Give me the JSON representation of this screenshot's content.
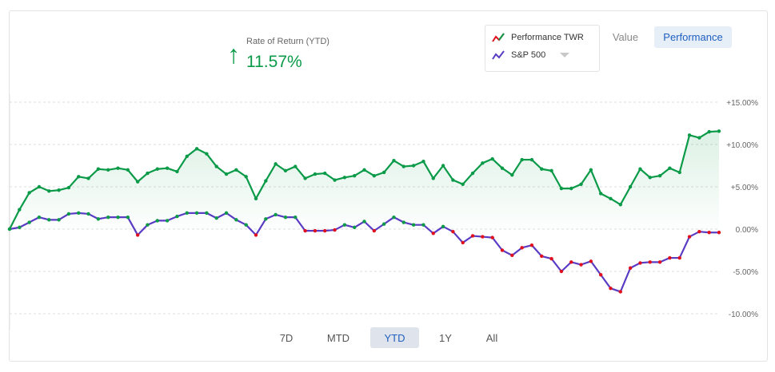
{
  "summary": {
    "label": "Rate of Return (YTD)",
    "value": "11.57%",
    "arrow_icon": "arrow-up-icon",
    "color": "#0a9a48"
  },
  "legend": {
    "items": [
      {
        "label": "Performance TWR",
        "icon": "trend-red-green-icon"
      },
      {
        "label": "S&P 500",
        "icon": "trend-purple-icon"
      }
    ]
  },
  "view_toggle": {
    "value": "Value",
    "performance": "Performance",
    "selected": "Performance"
  },
  "periods": {
    "items": [
      "7D",
      "MTD",
      "YTD",
      "1Y",
      "All"
    ],
    "selected": "YTD"
  },
  "chart_data": {
    "type": "line",
    "ylim": [
      -10,
      15
    ],
    "yticks": [
      "+15.00%",
      "+10.00%",
      "+5.00%",
      "0.00%",
      "-5.00%",
      "-10.00%"
    ],
    "ytick_values": [
      15,
      10,
      5,
      0,
      -5,
      -10
    ],
    "grid": true,
    "legend_placement": "top-right",
    "series": [
      {
        "name": "Performance TWR",
        "color": "#0a9a48",
        "fill": true,
        "values": [
          0.0,
          2.3,
          4.3,
          5.0,
          4.5,
          4.6,
          4.9,
          6.2,
          6.0,
          7.1,
          7.0,
          7.2,
          7.0,
          5.6,
          6.6,
          7.1,
          7.2,
          6.8,
          8.6,
          9.5,
          8.9,
          7.4,
          6.5,
          7.0,
          6.2,
          3.6,
          5.7,
          7.7,
          6.9,
          7.4,
          6.0,
          6.5,
          6.6,
          5.8,
          6.1,
          6.3,
          7.0,
          6.3,
          6.7,
          8.1,
          7.4,
          7.5,
          8.0,
          6.0,
          7.5,
          5.8,
          5.3,
          6.6,
          7.8,
          8.3,
          7.2,
          6.4,
          8.2,
          8.2,
          7.1,
          6.9,
          4.8,
          4.8,
          5.3,
          7.0,
          4.2,
          3.6,
          2.9,
          5.0,
          7.1,
          6.1,
          6.3,
          7.2,
          6.7,
          11.1,
          10.8,
          11.5,
          11.57
        ]
      },
      {
        "name": "S&P 500",
        "color": "#5a3cc4",
        "values": [
          0.0,
          0.2,
          0.8,
          1.4,
          1.1,
          1.1,
          1.8,
          1.9,
          1.8,
          1.2,
          1.4,
          1.4,
          1.4,
          -0.7,
          0.5,
          1.0,
          1.0,
          1.5,
          1.9,
          1.9,
          1.9,
          1.3,
          1.9,
          1.1,
          0.5,
          -0.7,
          1.2,
          1.7,
          1.4,
          1.4,
          -0.2,
          -0.2,
          -0.2,
          -0.1,
          0.5,
          0.2,
          0.9,
          -0.2,
          0.6,
          1.4,
          0.8,
          0.5,
          0.5,
          -0.5,
          0.3,
          -0.3,
          -1.6,
          -0.8,
          -0.9,
          -1.0,
          -2.5,
          -3.1,
          -2.2,
          -1.9,
          -3.2,
          -3.5,
          -5.0,
          -3.9,
          -4.2,
          -3.8,
          -5.4,
          -7.0,
          -7.4,
          -4.6,
          -4.0,
          -3.9,
          -3.9,
          -3.4,
          -3.4,
          -0.9,
          -0.3,
          -0.4,
          -0.4
        ]
      }
    ],
    "marker_colors": {
      "positive": "#0a9a48",
      "negative": "#e0101e"
    }
  }
}
